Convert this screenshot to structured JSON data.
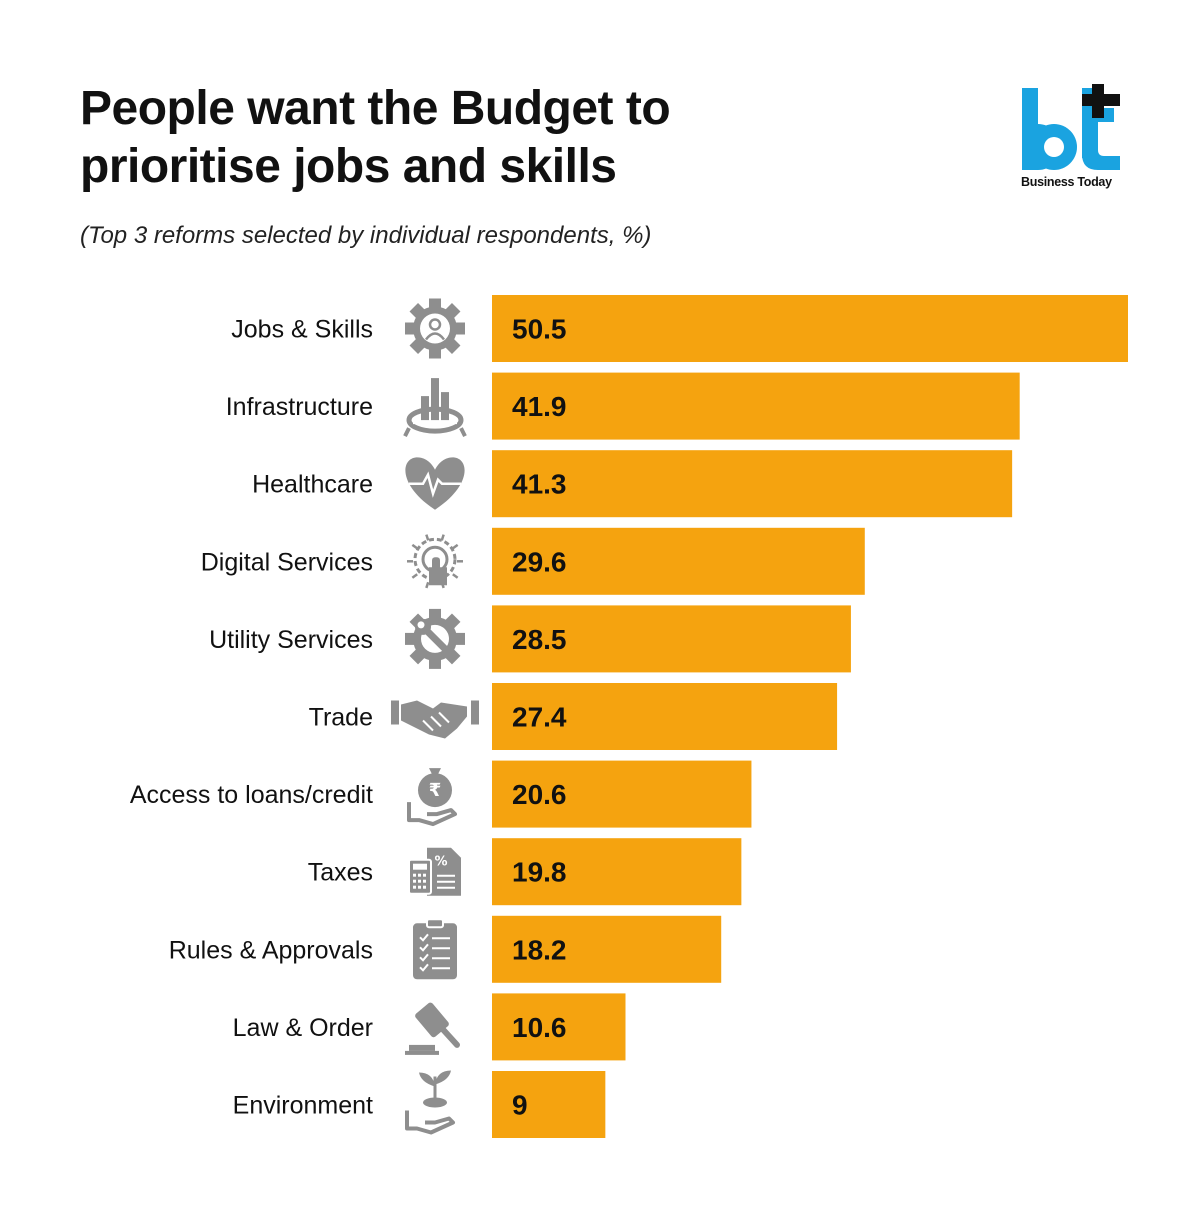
{
  "title_lines": [
    "People want the Budget to",
    "prioritise jobs and skills"
  ],
  "subtitle": "(Top 3 reforms selected by individual respondents, %)",
  "brand": {
    "logo_letters": "bt",
    "name": "Business Today",
    "logo_color": "#1aa3e0"
  },
  "colors": {
    "bar": "#f5a30f",
    "icon": "#8e8e8e",
    "text": "#111111"
  },
  "chart_data": {
    "type": "bar",
    "orientation": "horizontal",
    "categories": [
      "Jobs & Skills",
      "Infrastructure",
      "Healthcare",
      "Digital Services",
      "Utility Services",
      "Trade",
      "Access to loans/credit",
      "Taxes",
      "Rules & Approvals",
      "Law & Order",
      "Environment"
    ],
    "values": [
      50.5,
      41.9,
      41.3,
      29.6,
      28.5,
      27.4,
      20.6,
      19.8,
      18.2,
      10.6,
      9
    ],
    "value_labels": [
      "50.5",
      "41.9",
      "41.3",
      "29.6",
      "28.5",
      "27.4",
      "20.6",
      "19.8",
      "18.2",
      "10.6",
      "9"
    ],
    "icons": [
      "gear-person-icon",
      "city-buildings-icon",
      "heart-pulse-icon",
      "digital-touch-icon",
      "wrench-gear-icon",
      "handshake-icon",
      "money-bag-hand-icon",
      "tax-calculator-icon",
      "checklist-clipboard-icon",
      "gavel-icon",
      "plant-hand-icon"
    ],
    "xlim": [
      0,
      50.5
    ],
    "legend": "none",
    "grid": false
  }
}
